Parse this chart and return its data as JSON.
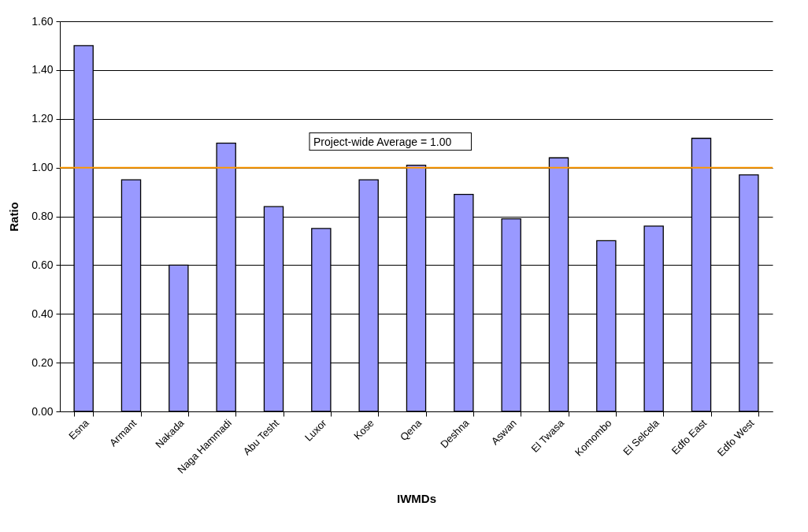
{
  "chart_data": {
    "type": "bar",
    "xlabel": "IWMDs",
    "ylabel": "Ratio",
    "categories": [
      "Esna",
      "Armant",
      "Nakada",
      "Naga Hammadi",
      "Abu Tesht",
      "Luxor",
      "Kose",
      "Qena",
      "Deshna",
      "Aswan",
      "El Twasa",
      "Komombo",
      "El Selcela",
      "Edfo East",
      "Edfo West"
    ],
    "values": [
      1.5,
      0.95,
      0.6,
      1.1,
      0.84,
      0.75,
      0.95,
      1.01,
      0.89,
      0.79,
      1.04,
      0.7,
      0.76,
      1.12,
      0.97
    ],
    "color": "#9999ff",
    "ylim": [
      0,
      1.6
    ],
    "yticks": [
      {
        "value": 0,
        "label": "0.00"
      },
      {
        "value": 0.2,
        "label": "0.20"
      },
      {
        "value": 0.4,
        "label": "0.40"
      },
      {
        "value": 0.6,
        "label": "0.60"
      },
      {
        "value": 0.8,
        "label": "0.80"
      },
      {
        "value": 1,
        "label": "1.00"
      },
      {
        "value": 1.2,
        "label": "1.20"
      },
      {
        "value": 1.4,
        "label": "1.40"
      },
      {
        "value": 1.6,
        "label": "1.60"
      }
    ],
    "grid": "y",
    "ref_lines": [
      {
        "axis": "y",
        "value": 1,
        "label": "Project-wide Average = 1.00",
        "color": "#ff9900"
      }
    ]
  }
}
